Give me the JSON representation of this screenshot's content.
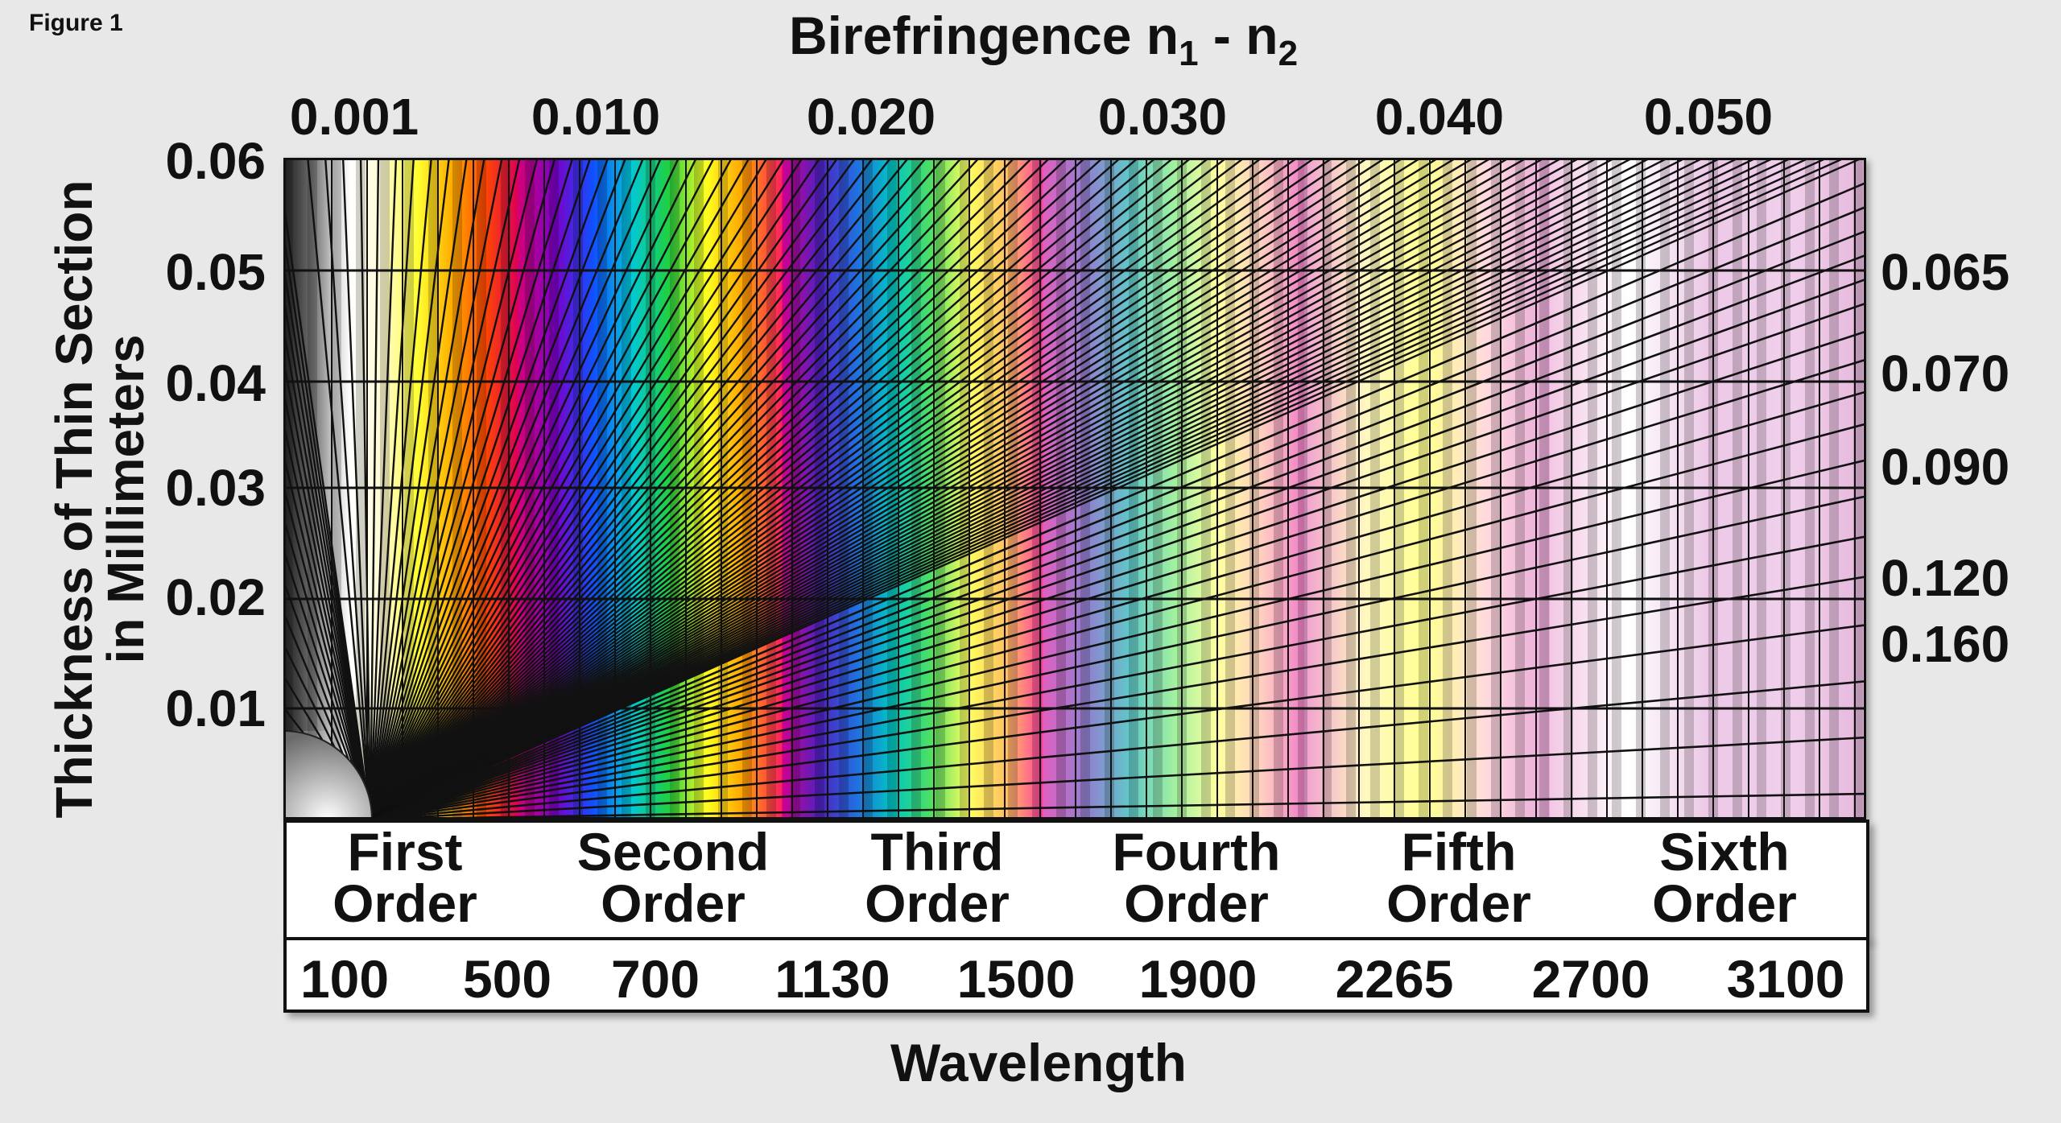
{
  "figure_label": "Figure 1",
  "top_title": {
    "text": "Birefringence n",
    "sub1": "1",
    "dash": " - n",
    "sub2": "2"
  },
  "y_title": {
    "line1": "Thickness of Thin Section",
    "line2": "in Millimeters"
  },
  "y_ticks": [
    "0.06",
    "0.05",
    "0.04",
    "0.03",
    "0.02",
    "0.01"
  ],
  "birefringence_ticks": [
    "0.001",
    "0.010",
    "0.020",
    "0.030",
    "0.040",
    "0.050"
  ],
  "right_labels": [
    "0.065",
    "0.070",
    "0.090",
    "0.120",
    "0.160"
  ],
  "orders": [
    {
      "line1": "First",
      "line2": "Order"
    },
    {
      "line1": "Second",
      "line2": "Order"
    },
    {
      "line1": "Third",
      "line2": "Order"
    },
    {
      "line1": "Fourth",
      "line2": "Order"
    },
    {
      "line1": "Fifth",
      "line2": "Order"
    },
    {
      "line1": "Sixth",
      "line2": "Order"
    }
  ],
  "wavelengths": [
    "100",
    "500",
    "700",
    "1130",
    "1500",
    "1900",
    "2265",
    "2700",
    "3100"
  ],
  "x_title": "Wavelength",
  "colors": {
    "background": "#e8e8e8",
    "grid_line": "#111111",
    "first_order": [
      "#3a3a3a",
      "#9a9a9a",
      "#ffffff",
      "#fffbd0",
      "#ffff33",
      "#ffb000",
      "#ff4a00",
      "#dd0055"
    ],
    "second_order": [
      "#d40077",
      "#7a00c8",
      "#1050ff",
      "#00c8d8",
      "#20d040",
      "#ffff20",
      "#ffa000",
      "#ff2060"
    ],
    "third_order": [
      "#d00090",
      "#5020c0",
      "#2070e0",
      "#00c8c0",
      "#50e060",
      "#ffff60",
      "#ffc060",
      "#ff40a0"
    ],
    "fourth_order": [
      "#e060c0",
      "#9080d0",
      "#60c8c8",
      "#a0f0a0",
      "#ffffa0",
      "#ffd0c0",
      "#f080c8"
    ],
    "fifth_order": [
      "#f0a0d0",
      "#fff8c0",
      "#ffff90",
      "#ffd8e0",
      "#e8a8d8"
    ],
    "sixth_order": [
      "#f2c8e4",
      "#ffffff",
      "#ecc8e6",
      "#f0d0ec",
      "#e6b8dc"
    ]
  }
}
